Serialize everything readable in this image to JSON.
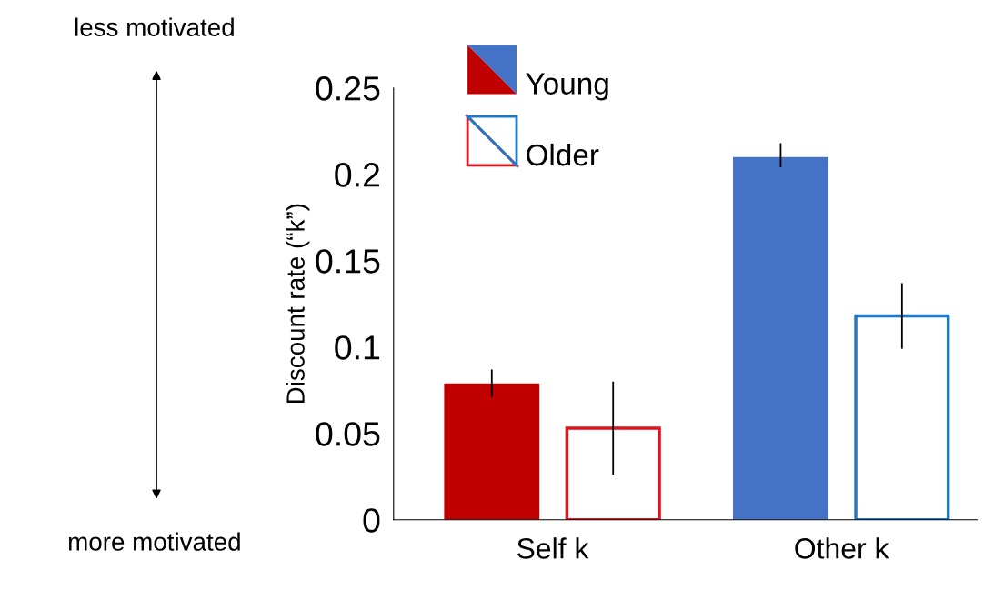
{
  "chart_data": {
    "type": "bar",
    "ylabel": "Discount rate (“k”)",
    "categories": [
      "Self k",
      "Other k"
    ],
    "series": [
      {
        "name": "Young",
        "colors": [
          "#c00000",
          "#4472c4"
        ],
        "values": [
          0.079,
          0.21
        ],
        "errors": [
          [
            0.071,
            0.087
          ],
          [
            0.204,
            0.218
          ]
        ]
      },
      {
        "name": "Older",
        "colors": [
          "#e0121b",
          "#1f78c8"
        ],
        "color": "#ffffff",
        "values": [
          0.053,
          0.118
        ],
        "errors": [
          [
            0.026,
            0.08
          ],
          [
            0.099,
            0.137
          ]
        ]
      }
    ],
    "ylim": [
      0,
      0.25
    ],
    "yticks": [
      0,
      0.05,
      0.1,
      0.15,
      0.2,
      0.25
    ],
    "legend": "top left",
    "grid": false,
    "annotations": [
      "less motivated",
      "more motivated"
    ]
  }
}
